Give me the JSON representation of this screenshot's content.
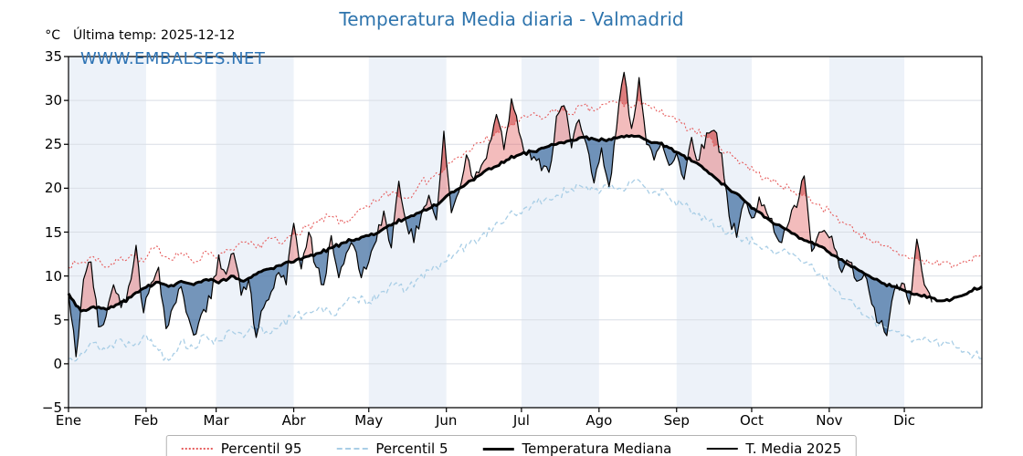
{
  "header": {
    "title": "Temperatura Media diaria - Valmadrid",
    "title_color": "#2e74ad",
    "last_temp": "Última temp: 2025-12-12",
    "watermark": "WWW.EMBALSES.NET",
    "watermark_color": "#2e74b5",
    "y_unit": "°C"
  },
  "legend": {
    "items": [
      {
        "label": "Percentil 95"
      },
      {
        "label": "Percentil 5"
      },
      {
        "label": "Temperatura Mediana"
      },
      {
        "label": "T. Media 2025"
      }
    ]
  },
  "chart_data": {
    "type": "line",
    "title": "Temperatura Media diaria - Valmadrid",
    "xlabel": "",
    "ylabel": "°C",
    "ylim": [
      -5,
      35
    ],
    "yticks": [
      35,
      30,
      25,
      20,
      15,
      10,
      5,
      0,
      -5
    ],
    "ytick_labels": [
      "35",
      "30",
      "25",
      "20",
      "15",
      "10",
      "5",
      "0",
      "−5"
    ],
    "x_months": [
      "Ene",
      "Feb",
      "Mar",
      "Abr",
      "May",
      "Jun",
      "Jul",
      "Ago",
      "Sep",
      "Oct",
      "Nov",
      "Dic"
    ],
    "month_start_days": [
      0,
      31,
      59,
      90,
      120,
      151,
      181,
      212,
      243,
      273,
      304,
      334
    ],
    "days_in_year": 365,
    "grid": true,
    "band_color": "#edf2f9",
    "grid_color": "#d9dee5",
    "legend_position": "bottom",
    "fills": {
      "above_median": "rgba(226,88,88,0.40)",
      "above_p95": "rgba(198,48,48,0.45)",
      "below_median": "rgba(62,108,160,0.72)",
      "below_p5": "rgba(26,68,118,0.50)"
    },
    "series": [
      {
        "name": "Percentil 95",
        "color": "#e65c5c",
        "dash": [
          2,
          2.2
        ],
        "width": 1.1,
        "step_days": 5,
        "jitter": 0.55,
        "seed": 7,
        "values": [
          11.0,
          11.5,
          12.2,
          11.0,
          11.8,
          12.4,
          11.6,
          13.4,
          12.0,
          12.6,
          11.5,
          12.8,
          12.2,
          13.0,
          13.8,
          13.2,
          14.4,
          13.6,
          14.8,
          15.6,
          16.2,
          16.8,
          16.0,
          17.2,
          17.8,
          19.0,
          19.6,
          18.8,
          20.4,
          21.2,
          22.0,
          23.4,
          24.2,
          25.2,
          26.0,
          27.0,
          27.6,
          28.4,
          28.0,
          29.0,
          28.4,
          29.4,
          28.8,
          29.6,
          30.0,
          29.2,
          29.8,
          28.8,
          28.2,
          27.4,
          26.6,
          25.8,
          24.8,
          23.8,
          22.8,
          21.8,
          21.0,
          20.2,
          19.6,
          19.0,
          18.2,
          17.0,
          16.0,
          15.0,
          14.2,
          13.4,
          12.8,
          12.2,
          11.8,
          11.4,
          11.6,
          11.2,
          11.8,
          12.6
        ]
      },
      {
        "name": "Percentil 5",
        "color": "#a9cee6",
        "dash": [
          5,
          3
        ],
        "width": 1.3,
        "step_days": 5,
        "jitter": 0.7,
        "seed": 13,
        "values": [
          0.6,
          1.2,
          2.4,
          1.6,
          2.8,
          2.2,
          3.2,
          2.0,
          0.4,
          2.6,
          1.8,
          3.2,
          2.6,
          3.8,
          3.0,
          4.2,
          3.4,
          4.6,
          5.2,
          5.8,
          6.4,
          5.6,
          6.8,
          7.4,
          7.0,
          8.2,
          9.0,
          8.4,
          9.8,
          10.6,
          11.6,
          12.6,
          13.6,
          14.6,
          15.6,
          16.6,
          17.2,
          18.0,
          18.6,
          19.2,
          19.6,
          20.2,
          19.8,
          20.4,
          20.0,
          20.6,
          20.2,
          19.6,
          19.0,
          18.2,
          17.2,
          16.4,
          15.6,
          14.8,
          14.2,
          13.6,
          13.0,
          12.8,
          12.4,
          11.6,
          10.2,
          8.8,
          7.4,
          6.2,
          5.2,
          4.4,
          3.8,
          3.2,
          2.8,
          2.4,
          2.6,
          1.8,
          1.2,
          0.6
        ]
      },
      {
        "name": "Temperatura Mediana",
        "color": "#000000",
        "dash": null,
        "width": 3.0,
        "step_days": 5,
        "jitter": 0.22,
        "seed": 3,
        "values": [
          8.0,
          6.0,
          6.5,
          6.2,
          6.8,
          7.6,
          8.6,
          9.3,
          8.8,
          9.4,
          9.0,
          9.6,
          9.2,
          10.0,
          9.4,
          10.2,
          10.8,
          11.2,
          11.6,
          12.2,
          12.6,
          13.2,
          13.8,
          14.2,
          14.6,
          15.2,
          16.0,
          16.6,
          17.2,
          17.8,
          18.8,
          19.8,
          20.8,
          21.6,
          22.4,
          23.2,
          23.8,
          24.2,
          24.6,
          25.0,
          25.4,
          25.8,
          25.6,
          25.4,
          25.8,
          26.0,
          25.6,
          25.2,
          24.6,
          23.8,
          23.0,
          22.0,
          20.8,
          19.6,
          18.6,
          17.4,
          16.4,
          15.6,
          14.8,
          14.0,
          13.4,
          12.4,
          11.6,
          10.8,
          10.0,
          9.2,
          8.8,
          8.2,
          7.8,
          7.5,
          7.2,
          7.6,
          8.2,
          8.8
        ]
      },
      {
        "name": "T. Media 2025",
        "color": "#000000",
        "dash": null,
        "width": 1.2,
        "step_days": 3,
        "jitter": 1.0,
        "seed": 42,
        "end_day": 346,
        "values": [
          8.0,
          0.8,
          9.6,
          11.6,
          4.2,
          5.4,
          9.0,
          6.4,
          8.8,
          13.5,
          5.8,
          9.2,
          11.0,
          4.0,
          6.6,
          8.8,
          5.2,
          3.4,
          6.2,
          7.4,
          12.4,
          10.2,
          12.6,
          7.8,
          9.6,
          3.0,
          6.4,
          8.2,
          10.4,
          9.0,
          16.0,
          10.8,
          15.0,
          11.0,
          9.0,
          14.6,
          9.8,
          12.6,
          13.4,
          9.8,
          11.6,
          14.0,
          17.4,
          13.2,
          20.8,
          16.0,
          13.8,
          17.0,
          19.2,
          16.4,
          26.5,
          17.2,
          19.6,
          23.8,
          21.0,
          22.6,
          25.0,
          28.4,
          24.4,
          30.2,
          26.4,
          24.0,
          23.6,
          22.0,
          21.8,
          28.2,
          29.4,
          24.6,
          27.8,
          25.0,
          20.6,
          24.6,
          20.2,
          26.8,
          33.2,
          26.8,
          32.6,
          25.0,
          23.2,
          25.2,
          22.6,
          24.0,
          21.0,
          25.8,
          23.2,
          26.3,
          26.6,
          24.0,
          16.8,
          14.4,
          18.4,
          16.6,
          19.0,
          17.2,
          15.0,
          13.8,
          16.2,
          17.8,
          21.4,
          12.8,
          15.0,
          14.8,
          13.2,
          10.4,
          11.6,
          9.4,
          10.2,
          6.8,
          4.6,
          3.2,
          8.4,
          9.2,
          6.8,
          14.2,
          9.0,
          7.0
        ]
      }
    ]
  }
}
